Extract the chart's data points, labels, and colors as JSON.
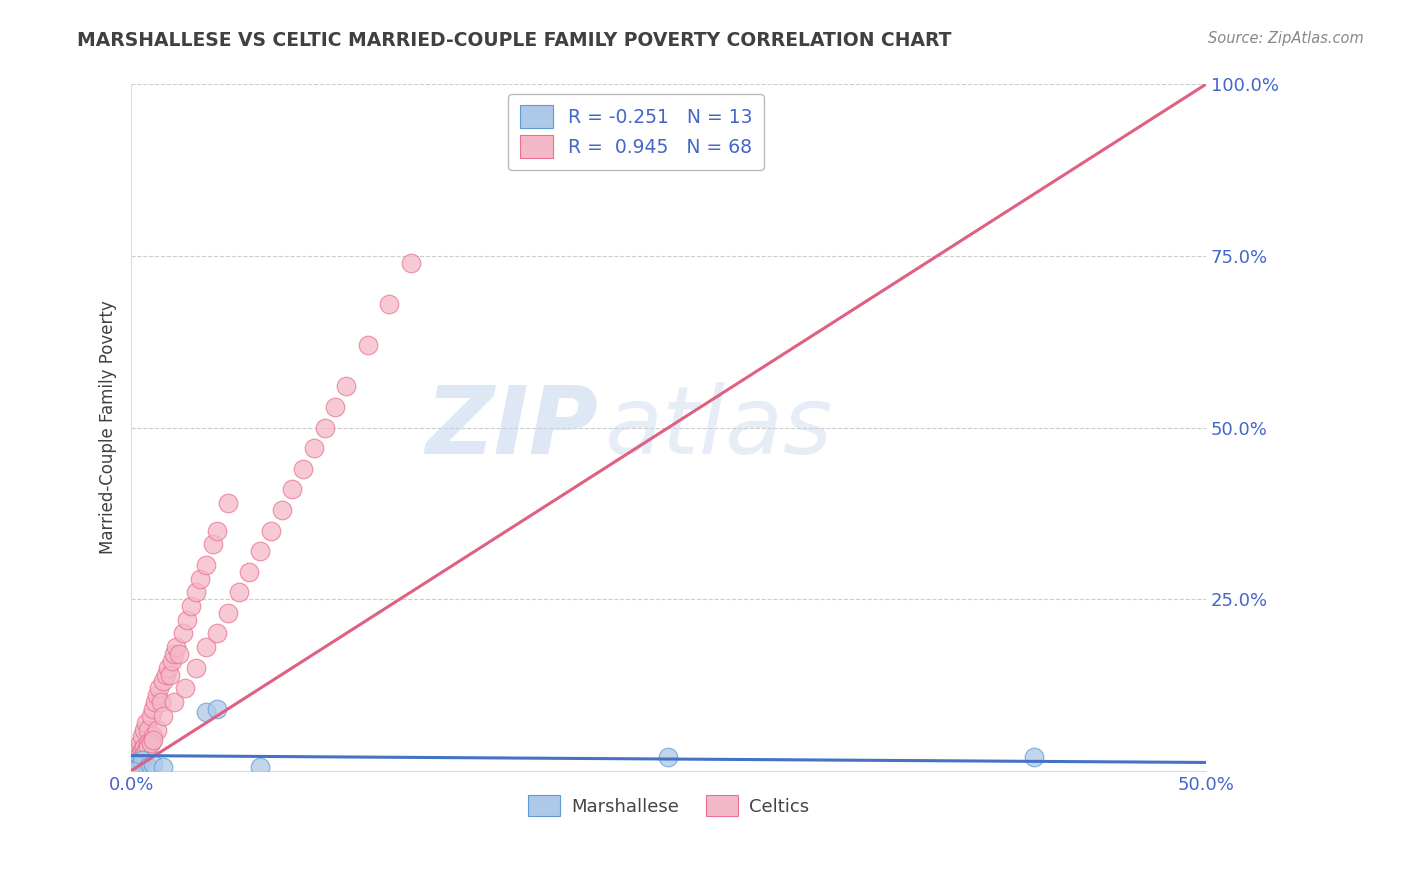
{
  "title": "MARSHALLESE VS CELTIC MARRIED-COUPLE FAMILY POVERTY CORRELATION CHART",
  "source": "Source: ZipAtlas.com",
  "ylabel": "Married-Couple Family Poverty",
  "xlim": [
    0.0,
    0.5
  ],
  "ylim": [
    0.0,
    1.0
  ],
  "xtick_positions": [
    0.0,
    0.1,
    0.2,
    0.3,
    0.4,
    0.5
  ],
  "xtick_labels": [
    "0.0%",
    "",
    "",
    "",
    "",
    "50.0%"
  ],
  "ytick_positions": [
    0.0,
    0.25,
    0.5,
    0.75,
    1.0
  ],
  "ytick_labels": [
    "",
    "25.0%",
    "50.0%",
    "75.0%",
    "100.0%"
  ],
  "watermark_zip": "ZIP",
  "watermark_atlas": "atlas",
  "legend_label1": "Marshallese",
  "legend_label2": "Celtics",
  "R1": -0.251,
  "N1": 13,
  "R2": 0.945,
  "N2": 68,
  "marshallese_color": "#aec8e8",
  "celtics_color": "#f4b8c8",
  "marshallese_edge": "#5b9bd5",
  "celtics_edge": "#e87090",
  "trend1_color": "#4472c4",
  "trend2_color": "#e06080",
  "background_color": "#ffffff",
  "grid_color": "#cccccc",
  "title_color": "#404040",
  "source_color": "#888888",
  "tick_label_color": "#4466cc",
  "ylabel_color": "#404040",
  "legend_text_color": "#404040",
  "legend_val_color": "#4466cc",
  "marsh_x": [
    0.001,
    0.002,
    0.003,
    0.005,
    0.008,
    0.01,
    0.015,
    0.035,
    0.04,
    0.06,
    0.25,
    0.42,
    0.001
  ],
  "marsh_y": [
    0.005,
    0.01,
    0.005,
    0.015,
    0.005,
    0.01,
    0.005,
    0.085,
    0.09,
    0.005,
    0.02,
    0.02,
    0.0
  ],
  "celt_x": [
    0.002,
    0.003,
    0.004,
    0.005,
    0.006,
    0.007,
    0.008,
    0.009,
    0.01,
    0.011,
    0.012,
    0.013,
    0.014,
    0.015,
    0.016,
    0.017,
    0.018,
    0.019,
    0.02,
    0.021,
    0.022,
    0.024,
    0.026,
    0.028,
    0.03,
    0.032,
    0.035,
    0.038,
    0.04,
    0.045,
    0.001,
    0.002,
    0.003,
    0.004,
    0.005,
    0.006,
    0.008,
    0.01,
    0.012,
    0.015,
    0.02,
    0.025,
    0.03,
    0.035,
    0.04,
    0.045,
    0.05,
    0.055,
    0.06,
    0.065,
    0.07,
    0.075,
    0.08,
    0.085,
    0.09,
    0.095,
    0.1,
    0.11,
    0.12,
    0.13,
    0.003,
    0.004,
    0.005,
    0.006,
    0.007,
    0.008,
    0.009,
    0.01
  ],
  "celt_y": [
    0.02,
    0.03,
    0.04,
    0.05,
    0.06,
    0.07,
    0.06,
    0.08,
    0.09,
    0.1,
    0.11,
    0.12,
    0.1,
    0.13,
    0.14,
    0.15,
    0.14,
    0.16,
    0.17,
    0.18,
    0.17,
    0.2,
    0.22,
    0.24,
    0.26,
    0.28,
    0.3,
    0.33,
    0.35,
    0.39,
    0.01,
    0.015,
    0.02,
    0.025,
    0.03,
    0.035,
    0.04,
    0.05,
    0.06,
    0.08,
    0.1,
    0.12,
    0.15,
    0.18,
    0.2,
    0.23,
    0.26,
    0.29,
    0.32,
    0.35,
    0.38,
    0.41,
    0.44,
    0.47,
    0.5,
    0.53,
    0.56,
    0.62,
    0.68,
    0.74,
    0.01,
    0.015,
    0.02,
    0.025,
    0.03,
    0.035,
    0.04,
    0.045
  ],
  "celt_trend_x": [
    0.0,
    0.5
  ],
  "celt_trend_y": [
    0.0,
    1.0
  ],
  "marsh_trend_x": [
    0.0,
    0.5
  ],
  "marsh_trend_y": [
    0.022,
    0.012
  ]
}
